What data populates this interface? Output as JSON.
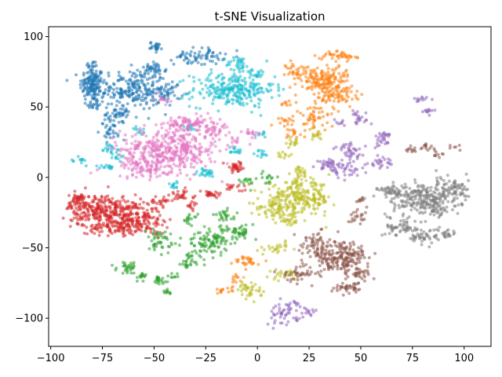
{
  "chart_data": {
    "type": "scatter",
    "title": "t-SNE Visualization",
    "xlabel": "",
    "ylabel": "",
    "xlim": [
      -101,
      113
    ],
    "ylim": [
      -120,
      107
    ],
    "x_ticks": [
      -100,
      -75,
      -50,
      -25,
      0,
      25,
      50,
      75,
      100
    ],
    "y_ticks": [
      -100,
      -50,
      0,
      50,
      100
    ],
    "grid": false,
    "legend": "none",
    "marker_size": 2,
    "alpha": 0.55,
    "series": [
      {
        "color": "#1f77b4",
        "clusters": [
          {
            "cx": -80,
            "cy": 66,
            "sx": 3,
            "sy": 6,
            "n": 140
          },
          {
            "cx": -79,
            "cy": 52,
            "sx": 2,
            "sy": 2,
            "n": 20
          },
          {
            "cx": -80,
            "cy": 79,
            "sx": 1.5,
            "sy": 2,
            "n": 15
          },
          {
            "cx": -60,
            "cy": 62,
            "sx": 8,
            "sy": 7,
            "n": 230
          },
          {
            "cx": -67,
            "cy": 45,
            "sx": 3,
            "sy": 2,
            "n": 30
          },
          {
            "cx": -70,
            "cy": 35,
            "sx": 3,
            "sy": 4,
            "n": 40
          },
          {
            "cx": -50,
            "cy": 76,
            "sx": 3,
            "sy": 3,
            "n": 35
          },
          {
            "cx": -49,
            "cy": 93,
            "sx": 1.5,
            "sy": 1.5,
            "n": 25
          },
          {
            "cx": -28,
            "cy": 86,
            "sx": 6,
            "sy": 3,
            "n": 70
          },
          {
            "cx": -43,
            "cy": 60,
            "sx": 3,
            "sy": 4,
            "n": 40
          }
        ]
      },
      {
        "color": "#17becf",
        "clusters": [
          {
            "cx": -12,
            "cy": 62,
            "sx": 10,
            "sy": 6,
            "n": 260
          },
          {
            "cx": -9,
            "cy": 80,
            "sx": 3,
            "sy": 3,
            "n": 35
          },
          {
            "cx": 0,
            "cy": 74,
            "sx": 2,
            "sy": 2,
            "n": 15
          },
          {
            "cx": -72,
            "cy": 20,
            "sx": 2,
            "sy": 2,
            "n": 18
          },
          {
            "cx": -85,
            "cy": 12,
            "sx": 1.5,
            "sy": 2,
            "n": 12
          },
          {
            "cx": -73,
            "cy": 7,
            "sx": 2,
            "sy": 1,
            "n": 15
          },
          {
            "cx": -67,
            "cy": 15,
            "sx": 1.5,
            "sy": 2,
            "n": 10
          },
          {
            "cx": -57,
            "cy": 33,
            "sx": 1.5,
            "sy": 1.5,
            "n": 10
          },
          {
            "cx": -33,
            "cy": 35,
            "sx": 2,
            "sy": 2,
            "n": 12
          },
          {
            "cx": -25,
            "cy": 3,
            "sx": 3,
            "sy": 1.5,
            "n": 25
          },
          {
            "cx": -40,
            "cy": -5,
            "sx": 2,
            "sy": 1.5,
            "n": 12
          },
          {
            "cx": 2,
            "cy": 17,
            "sx": 1.5,
            "sy": 1.5,
            "n": 12
          },
          {
            "cx": -11,
            "cy": 19,
            "sx": 2,
            "sy": 1.5,
            "n": 15
          },
          {
            "cx": 3,
            "cy": 30,
            "sx": 1.5,
            "sy": 1.5,
            "n": 8
          }
        ]
      },
      {
        "color": "#e377c2",
        "clusters": [
          {
            "cx": -42,
            "cy": 20,
            "sx": 12,
            "sy": 8,
            "n": 420
          },
          {
            "cx": -33,
            "cy": 38,
            "sx": 6,
            "sy": 3,
            "n": 80
          },
          {
            "cx": -55,
            "cy": 8,
            "sx": 5,
            "sy": 4,
            "n": 80
          },
          {
            "cx": -20,
            "cy": 34,
            "sx": 3,
            "sy": 3,
            "n": 30
          },
          {
            "cx": -46,
            "cy": 55,
            "sx": 2,
            "sy": 2,
            "n": 12
          },
          {
            "cx": -4,
            "cy": 33,
            "sx": 2,
            "sy": 2,
            "n": 15
          },
          {
            "cx": -10,
            "cy": 26,
            "sx": 1.5,
            "sy": 1.5,
            "n": 8
          }
        ]
      },
      {
        "color": "#d62728",
        "clusters": [
          {
            "cx": -73,
            "cy": -24,
            "sx": 9,
            "sy": 6,
            "n": 320
          },
          {
            "cx": -87,
            "cy": -17,
            "sx": 3,
            "sy": 3,
            "n": 50
          },
          {
            "cx": -55,
            "cy": -30,
            "sx": 6,
            "sy": 5,
            "n": 110
          },
          {
            "cx": -68,
            "cy": -36,
            "sx": 7,
            "sy": 2.5,
            "n": 80
          },
          {
            "cx": -47,
            "cy": -17,
            "sx": 3,
            "sy": 2,
            "n": 25
          },
          {
            "cx": -37,
            "cy": -13,
            "sx": 3,
            "sy": 2,
            "n": 25
          },
          {
            "cx": -23,
            "cy": -12,
            "sx": 3,
            "sy": 1.5,
            "n": 25
          },
          {
            "cx": -10,
            "cy": 7,
            "sx": 3,
            "sy": 2,
            "n": 35
          },
          {
            "cx": -11,
            "cy": -7,
            "sx": 2,
            "sy": 1.5,
            "n": 15
          },
          {
            "cx": -32,
            "cy": -20,
            "sx": 2,
            "sy": 1.5,
            "n": 12
          }
        ]
      },
      {
        "color": "#2ca02c",
        "clusters": [
          {
            "cx": -22,
            "cy": -45,
            "sx": 7,
            "sy": 5,
            "n": 120
          },
          {
            "cx": -48,
            "cy": -45,
            "sx": 3,
            "sy": 4,
            "n": 40
          },
          {
            "cx": -62,
            "cy": -64,
            "sx": 3,
            "sy": 2,
            "n": 30
          },
          {
            "cx": -56,
            "cy": -70,
            "sx": 2,
            "sy": 2,
            "n": 15
          },
          {
            "cx": -48,
            "cy": -73,
            "sx": 2,
            "sy": 2,
            "n": 20
          },
          {
            "cx": -44,
            "cy": -82,
            "sx": 1.5,
            "sy": 1,
            "n": 10
          },
          {
            "cx": -33,
            "cy": -60,
            "sx": 3,
            "sy": 3,
            "n": 30
          },
          {
            "cx": -8,
            "cy": -38,
            "sx": 3,
            "sy": 2,
            "n": 30
          },
          {
            "cx": -15,
            "cy": -27,
            "sx": 3,
            "sy": 2,
            "n": 25
          },
          {
            "cx": -33,
            "cy": -30,
            "sx": 2,
            "sy": 2,
            "n": 15
          },
          {
            "cx": -5,
            "cy": -3,
            "sx": 2,
            "sy": 2,
            "n": 15
          },
          {
            "cx": 5,
            "cy": 0,
            "sx": 2,
            "sy": 2,
            "n": 15
          },
          {
            "cx": -40,
            "cy": -70,
            "sx": 1.5,
            "sy": 1.5,
            "n": 8
          }
        ]
      },
      {
        "color": "#bcbd22",
        "clusters": [
          {
            "cx": 20,
            "cy": -15,
            "sx": 8,
            "sy": 6,
            "n": 250
          },
          {
            "cx": 8,
            "cy": -22,
            "sx": 4,
            "sy": 3,
            "n": 50
          },
          {
            "cx": 15,
            "cy": -30,
            "sx": 3,
            "sy": 2,
            "n": 25
          },
          {
            "cx": 20,
            "cy": 3,
            "sx": 2,
            "sy": 3,
            "n": 25
          },
          {
            "cx": 17,
            "cy": 25,
            "sx": 2,
            "sy": 2,
            "n": 15
          },
          {
            "cx": 28,
            "cy": 30,
            "sx": 2,
            "sy": 2,
            "n": 15
          },
          {
            "cx": 13,
            "cy": 15,
            "sx": 1.5,
            "sy": 1.5,
            "n": 10
          },
          {
            "cx": 10,
            "cy": -50,
            "sx": 3,
            "sy": 2,
            "n": 25
          },
          {
            "cx": -4,
            "cy": -80,
            "sx": 3,
            "sy": 3,
            "n": 40
          },
          {
            "cx": 13,
            "cy": -69,
            "sx": 3,
            "sy": 2,
            "n": 25
          }
        ]
      },
      {
        "color": "#ff7f0e",
        "clusters": [
          {
            "cx": 33,
            "cy": 68,
            "sx": 6,
            "sy": 6,
            "n": 180
          },
          {
            "cx": 40,
            "cy": 58,
            "sx": 4,
            "sy": 4,
            "n": 40
          },
          {
            "cx": 28,
            "cy": 42,
            "sx": 4,
            "sy": 5,
            "n": 50
          },
          {
            "cx": 40,
            "cy": 86,
            "sx": 5,
            "sy": 2,
            "n": 40
          },
          {
            "cx": 20,
            "cy": 75,
            "sx": 3,
            "sy": 4,
            "n": 40
          },
          {
            "cx": 14,
            "cy": 40,
            "sx": 2,
            "sy": 2,
            "n": 15
          },
          {
            "cx": 17,
            "cy": 32,
            "sx": 2,
            "sy": 2,
            "n": 15
          },
          {
            "cx": 13,
            "cy": 52,
            "sx": 1.5,
            "sy": 1.5,
            "n": 8
          },
          {
            "cx": -5,
            "cy": -60,
            "sx": 3,
            "sy": 2,
            "n": 30
          },
          {
            "cx": -16,
            "cy": -80,
            "sx": 2,
            "sy": 1.5,
            "n": 15
          },
          {
            "cx": -10,
            "cy": -72,
            "sx": 1.5,
            "sy": 1.5,
            "n": 10
          }
        ]
      },
      {
        "color": "#9467bd",
        "clusters": [
          {
            "cx": 45,
            "cy": 18,
            "sx": 4,
            "sy": 3,
            "n": 40
          },
          {
            "cx": 35,
            "cy": 10,
            "sx": 3,
            "sy": 2,
            "n": 30
          },
          {
            "cx": 42,
            "cy": 5,
            "sx": 5,
            "sy": 3,
            "n": 40
          },
          {
            "cx": 60,
            "cy": 10,
            "sx": 3,
            "sy": 2,
            "n": 25
          },
          {
            "cx": 59,
            "cy": 25,
            "sx": 2,
            "sy": 2,
            "n": 15
          },
          {
            "cx": 62,
            "cy": 30,
            "sx": 2,
            "sy": 1.5,
            "n": 15
          },
          {
            "cx": 48,
            "cy": 45,
            "sx": 1.5,
            "sy": 1.5,
            "n": 10
          },
          {
            "cx": 50,
            "cy": 40,
            "sx": 2,
            "sy": 1.5,
            "n": 12
          },
          {
            "cx": 40,
            "cy": 38,
            "sx": 1.5,
            "sy": 1.5,
            "n": 8
          },
          {
            "cx": 78,
            "cy": 55,
            "sx": 2,
            "sy": 1,
            "n": 12
          },
          {
            "cx": 82,
            "cy": 47,
            "sx": 2,
            "sy": 1,
            "n": 12
          },
          {
            "cx": 14,
            "cy": -97,
            "sx": 5,
            "sy": 4,
            "n": 50
          },
          {
            "cx": 25,
            "cy": -95,
            "sx": 2,
            "sy": 1.5,
            "n": 12
          },
          {
            "cx": 18,
            "cy": -90,
            "sx": 1.5,
            "sy": 1.5,
            "n": 8
          }
        ]
      },
      {
        "color": "#8c564b",
        "clusters": [
          {
            "cx": 40,
            "cy": -57,
            "sx": 7,
            "sy": 6,
            "n": 220
          },
          {
            "cx": 28,
            "cy": -47,
            "sx": 4,
            "sy": 4,
            "n": 50
          },
          {
            "cx": 20,
            "cy": -68,
            "sx": 4,
            "sy": 3,
            "n": 40
          },
          {
            "cx": 45,
            "cy": -78,
            "sx": 4,
            "sy": 2,
            "n": 40
          },
          {
            "cx": 50,
            "cy": -68,
            "sx": 3,
            "sy": 2,
            "n": 25
          },
          {
            "cx": 48,
            "cy": -28,
            "sx": 2,
            "sy": 2,
            "n": 20
          },
          {
            "cx": 50,
            "cy": -17,
            "sx": 1.5,
            "sy": 1.5,
            "n": 10
          },
          {
            "cx": 82,
            "cy": 22,
            "sx": 2,
            "sy": 1.5,
            "n": 15
          },
          {
            "cx": 74,
            "cy": 20,
            "sx": 1.5,
            "sy": 1.5,
            "n": 10
          },
          {
            "cx": 88,
            "cy": 15,
            "sx": 1.5,
            "sy": 1.5,
            "n": 8
          },
          {
            "cx": 95,
            "cy": 22,
            "sx": 1.5,
            "sy": 1,
            "n": 6
          }
        ]
      },
      {
        "color": "#7f7f7f",
        "clusters": [
          {
            "cx": 80,
            "cy": -15,
            "sx": 9,
            "sy": 6,
            "n": 280
          },
          {
            "cx": 96,
            "cy": -8,
            "sx": 3,
            "sy": 4,
            "n": 50
          },
          {
            "cx": 70,
            "cy": -35,
            "sx": 4,
            "sy": 3,
            "n": 50
          },
          {
            "cx": 80,
            "cy": -42,
            "sx": 4,
            "sy": 3,
            "n": 50
          },
          {
            "cx": 92,
            "cy": -40,
            "sx": 2,
            "sy": 2,
            "n": 20
          },
          {
            "cx": 65,
            "cy": -10,
            "sx": 3,
            "sy": 2,
            "n": 30
          },
          {
            "cx": 88,
            "cy": -25,
            "sx": 2,
            "sy": 2,
            "n": 15
          }
        ]
      }
    ]
  }
}
